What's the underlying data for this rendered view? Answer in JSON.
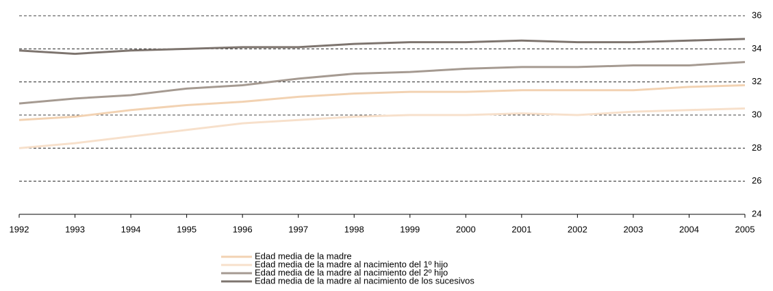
{
  "chart_data": {
    "type": "line",
    "x": [
      1992,
      1993,
      1994,
      1995,
      1996,
      1997,
      1998,
      1999,
      2000,
      2001,
      2002,
      2003,
      2004,
      2005
    ],
    "xlim": [
      1992,
      2005
    ],
    "xticks": [
      1992,
      1993,
      1994,
      1995,
      1996,
      1997,
      1998,
      1999,
      2000,
      2001,
      2002,
      2003,
      2004,
      2005
    ],
    "ylim": [
      24,
      36
    ],
    "yticks": [
      24,
      26,
      28,
      30,
      32,
      34,
      36
    ],
    "grid": true,
    "legend": "bottom",
    "series": [
      {
        "name": "Edad media de la madre",
        "color": "#f2d2b2",
        "values": [
          29.7,
          29.9,
          30.3,
          30.6,
          30.8,
          31.1,
          31.3,
          31.4,
          31.4,
          31.5,
          31.5,
          31.5,
          31.7,
          31.8
        ]
      },
      {
        "name": "Edad media de la madre al nacimiento del 1º hijo",
        "color": "#f7e0cb",
        "values": [
          28.0,
          28.3,
          28.7,
          29.1,
          29.5,
          29.7,
          29.9,
          30.0,
          30.0,
          30.1,
          30.0,
          30.2,
          30.3,
          30.4
        ]
      },
      {
        "name": "Edad media de la madre al nacimiento del 2º hijo",
        "color": "#a59a91",
        "values": [
          30.7,
          31.0,
          31.2,
          31.6,
          31.8,
          32.2,
          32.5,
          32.6,
          32.8,
          32.9,
          32.9,
          33.0,
          33.0,
          33.2
        ]
      },
      {
        "name": "Edad media de la madre al nacimiento de los sucesivos",
        "color": "#7d746e",
        "values": [
          33.9,
          33.7,
          33.9,
          34.0,
          34.1,
          34.1,
          34.3,
          34.4,
          34.4,
          34.5,
          34.4,
          34.4,
          34.5,
          34.6
        ]
      }
    ]
  }
}
